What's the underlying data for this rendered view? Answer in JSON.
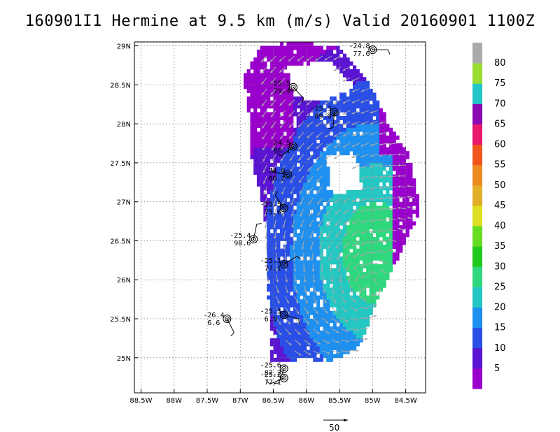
{
  "chart_data": {
    "type": "vector-field",
    "title": "160901I1 Hermine at 9.5 km (m/s) Valid 20160901 1100Z",
    "xlim": [
      -88.6,
      -84.2
    ],
    "ylim": [
      24.55,
      29.05
    ],
    "x_ticks": [
      {
        "value": -88.5,
        "label": "88.5W"
      },
      {
        "value": -88,
        "label": "88W"
      },
      {
        "value": -87.5,
        "label": "87.5W"
      },
      {
        "value": -87,
        "label": "87W"
      },
      {
        "value": -86.5,
        "label": "86.5W"
      },
      {
        "value": -86,
        "label": "86W"
      },
      {
        "value": -85.5,
        "label": "85.5W"
      },
      {
        "value": -85,
        "label": "85W"
      },
      {
        "value": -84.5,
        "label": "84.5W"
      }
    ],
    "y_ticks": [
      {
        "value": 25,
        "label": "25N"
      },
      {
        "value": 25.5,
        "label": "25.5N"
      },
      {
        "value": 26,
        "label": "26N"
      },
      {
        "value": 26.5,
        "label": "26.5N"
      },
      {
        "value": 27,
        "label": "27N"
      },
      {
        "value": 27.5,
        "label": "27.5N"
      },
      {
        "value": 28,
        "label": "28N"
      },
      {
        "value": 28.5,
        "label": "28.5N"
      },
      {
        "value": 29,
        "label": "29N"
      }
    ],
    "grid": true,
    "colorbar": {
      "labels": [
        "5",
        "10",
        "15",
        "20",
        "25",
        "30",
        "35",
        "40",
        "45",
        "50",
        "55",
        "60",
        "65",
        "70",
        "75",
        "80"
      ],
      "colors": [
        "#9900cc",
        "#5a14d2",
        "#2a4fe6",
        "#1f90f0",
        "#25c7c3",
        "#2fd87e",
        "#22c91e",
        "#66dd22",
        "#dede22",
        "#e0ae28",
        "#ec8a22",
        "#f0561e",
        "#e8186a",
        "#8a0ab4",
        "#22c6c6",
        "#99dd33",
        "#aaaaaa"
      ]
    },
    "reference_vector": {
      "label": "50"
    },
    "observations": [
      {
        "lon": -85.0,
        "lat": 28.95,
        "t": "-24.8",
        "v": "77.6"
      },
      {
        "lon": -86.2,
        "lat": 28.47,
        "t": "-25.5",
        "v": "79.4"
      },
      {
        "lon": -85.58,
        "lat": 28.15,
        "t": "-25.3",
        "v": "89.0"
      },
      {
        "lon": -86.2,
        "lat": 27.71,
        "t": "-24.5",
        "v": "80.1"
      },
      {
        "lon": -86.28,
        "lat": 27.35,
        "t": "-24.0",
        "v": "80.2"
      },
      {
        "lon": -86.34,
        "lat": 26.92,
        "t": "-25.5",
        "v": "75.6"
      },
      {
        "lon": -86.8,
        "lat": 26.52,
        "t": "-25.4",
        "v": "98.6"
      },
      {
        "lon": -86.34,
        "lat": 26.2,
        "t": "-25.1",
        "v": "77.1"
      },
      {
        "lon": -86.34,
        "lat": 25.55,
        "t": "-25.3",
        "v": "6.9"
      },
      {
        "lon": -87.2,
        "lat": 25.5,
        "t": "-26.4",
        "v": "6.6"
      },
      {
        "lon": -86.34,
        "lat": 24.86,
        "t": "-25.6",
        "v": "82.2"
      },
      {
        "lon": -86.34,
        "lat": 24.74,
        "t": "-25.2",
        "v": "77.1"
      }
    ]
  }
}
